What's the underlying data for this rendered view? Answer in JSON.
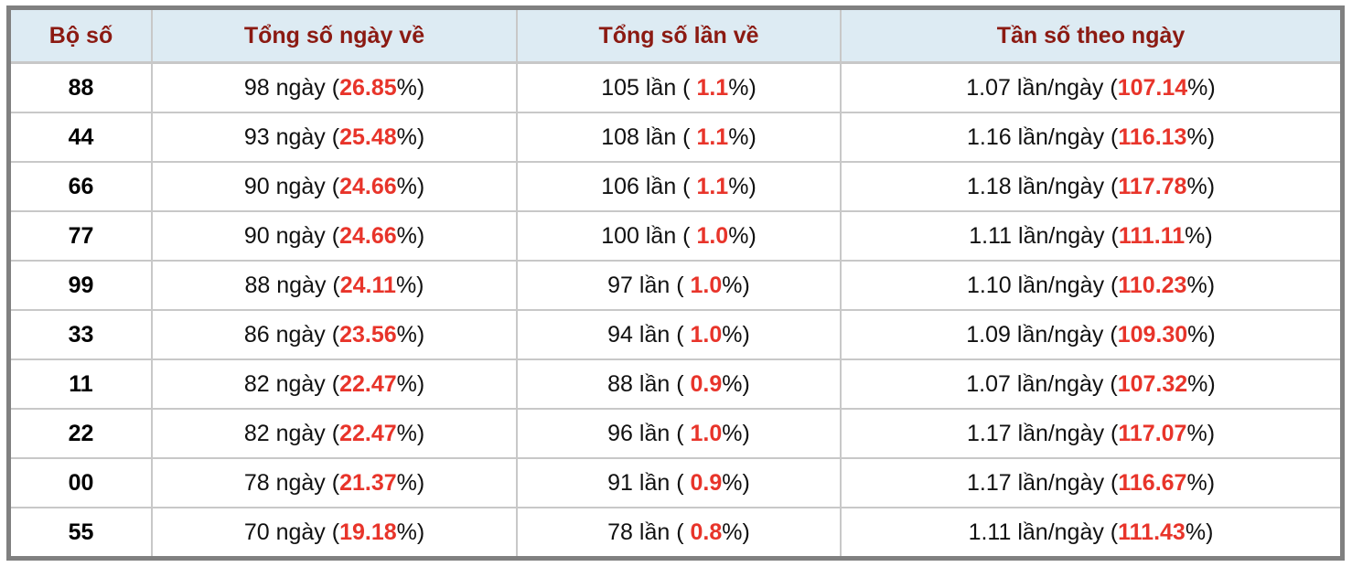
{
  "colors": {
    "header_bg": "#ddebf3",
    "header_text": "#8b1a12",
    "highlight": "#e8342a",
    "frame": "#808080"
  },
  "headers": [
    "Bộ số",
    "Tổng số ngày về",
    "Tổng số lần về",
    "Tần số theo ngày"
  ],
  "rows": [
    {
      "bo_so": "88",
      "ngay": "98 ngày (",
      "ngay_pct": "26.85",
      "lan": "105 lần ( ",
      "lan_pct": "1.1",
      "tan_so": "1.07 lần/ngày (",
      "tan_so_pct": "107.14"
    },
    {
      "bo_so": "44",
      "ngay": "93 ngày (",
      "ngay_pct": "25.48",
      "lan": "108 lần ( ",
      "lan_pct": "1.1",
      "tan_so": "1.16 lần/ngày (",
      "tan_so_pct": "116.13"
    },
    {
      "bo_so": "66",
      "ngay": "90 ngày (",
      "ngay_pct": "24.66",
      "lan": "106 lần ( ",
      "lan_pct": "1.1",
      "tan_so": "1.18 lần/ngày (",
      "tan_so_pct": "117.78"
    },
    {
      "bo_so": "77",
      "ngay": "90 ngày (",
      "ngay_pct": "24.66",
      "lan": "100 lần ( ",
      "lan_pct": "1.0",
      "tan_so": "1.11 lần/ngày (",
      "tan_so_pct": "111.11"
    },
    {
      "bo_so": "99",
      "ngay": "88 ngày (",
      "ngay_pct": "24.11",
      "lan": "97 lần ( ",
      "lan_pct": "1.0",
      "tan_so": "1.10 lần/ngày (",
      "tan_so_pct": "110.23"
    },
    {
      "bo_so": "33",
      "ngay": "86 ngày (",
      "ngay_pct": "23.56",
      "lan": "94 lần ( ",
      "lan_pct": "1.0",
      "tan_so": "1.09 lần/ngày (",
      "tan_so_pct": "109.30"
    },
    {
      "bo_so": "11",
      "ngay": "82 ngày (",
      "ngay_pct": "22.47",
      "lan": "88 lần ( ",
      "lan_pct": "0.9",
      "tan_so": "1.07 lần/ngày (",
      "tan_so_pct": "107.32"
    },
    {
      "bo_so": "22",
      "ngay": "82 ngày (",
      "ngay_pct": "22.47",
      "lan": "96 lần ( ",
      "lan_pct": "1.0",
      "tan_so": "1.17 lần/ngày (",
      "tan_so_pct": "117.07"
    },
    {
      "bo_so": "00",
      "ngay": "78 ngày (",
      "ngay_pct": "21.37",
      "lan": "91 lần ( ",
      "lan_pct": "0.9",
      "tan_so": "1.17 lần/ngày (",
      "tan_so_pct": "116.67"
    },
    {
      "bo_so": "55",
      "ngay": "70 ngày (",
      "ngay_pct": "19.18",
      "lan": "78 lần ( ",
      "lan_pct": "0.8",
      "tan_so": "1.11 lần/ngày (",
      "tan_so_pct": "111.43"
    }
  ],
  "suffix": "%)"
}
